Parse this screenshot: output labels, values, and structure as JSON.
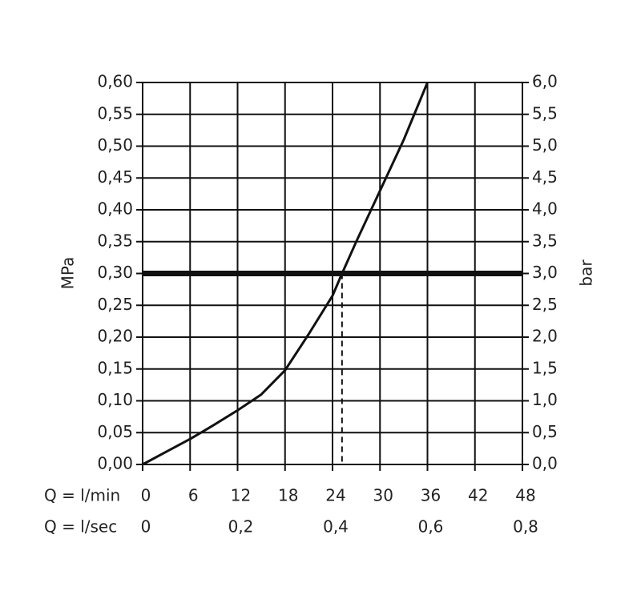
{
  "chart_data": {
    "type": "line",
    "x": [
      0,
      3,
      6,
      9,
      12,
      15,
      18,
      21,
      24,
      25.2,
      27,
      30,
      33,
      36
    ],
    "values": [
      0,
      0.02,
      0.04,
      0.062,
      0.085,
      0.11,
      0.148,
      0.205,
      0.265,
      0.3,
      0.35,
      0.43,
      0.51,
      0.6
    ],
    "color": "#111111",
    "xlim": [
      0,
      48
    ],
    "xticks": [
      0,
      6,
      12,
      18,
      24,
      30,
      36,
      42,
      48
    ],
    "x_label": "Q = l/min",
    "x2lim": [
      0,
      0.8
    ],
    "x2ticks": [
      0,
      {
        "value": 0.2,
        "label": "0,2"
      },
      {
        "value": 0.4,
        "label": "0,4"
      },
      {
        "value": 0.6,
        "label": "0,6"
      },
      {
        "value": 0.8,
        "label": "0,8"
      }
    ],
    "x2_label": "Q = l/sec",
    "ylim": [
      0,
      0.6
    ],
    "yticks": [
      {
        "value": 0,
        "label": "0,00"
      },
      {
        "value": 0.05,
        "label": "0,05"
      },
      {
        "value": 0.1,
        "label": "0,10"
      },
      {
        "value": 0.15,
        "label": "0,15"
      },
      {
        "value": 0.2,
        "label": "0,20"
      },
      {
        "value": 0.25,
        "label": "0,25"
      },
      {
        "value": 0.3,
        "label": "0,30"
      },
      {
        "value": 0.35,
        "label": "0,35"
      },
      {
        "value": 0.4,
        "label": "0,40"
      },
      {
        "value": 0.45,
        "label": "0,45"
      },
      {
        "value": 0.5,
        "label": "0,50"
      },
      {
        "value": 0.55,
        "label": "0,55"
      },
      {
        "value": 0.6,
        "label": "0,60"
      }
    ],
    "y_label": "MPa",
    "y2lim": [
      0,
      6
    ],
    "y2ticks": [
      {
        "value": 0,
        "label": "0,0"
      },
      {
        "value": 0.5,
        "label": "0,5"
      },
      {
        "value": 1,
        "label": "1,0"
      },
      {
        "value": 1.5,
        "label": "1,5"
      },
      {
        "value": 2,
        "label": "2,0"
      },
      {
        "value": 2.5,
        "label": "2,5"
      },
      {
        "value": 3,
        "label": "3,0"
      },
      {
        "value": 3.5,
        "label": "3,5"
      },
      {
        "value": 4,
        "label": "4,0"
      },
      {
        "value": 4.5,
        "label": "4,5"
      },
      {
        "value": 5,
        "label": "5,0"
      },
      {
        "value": 5.5,
        "label": "5,5"
      },
      {
        "value": 6,
        "label": "6,0"
      }
    ],
    "y2_label": "bar",
    "reference_y": 0.3,
    "reference_x": 25.2,
    "grid": true
  }
}
